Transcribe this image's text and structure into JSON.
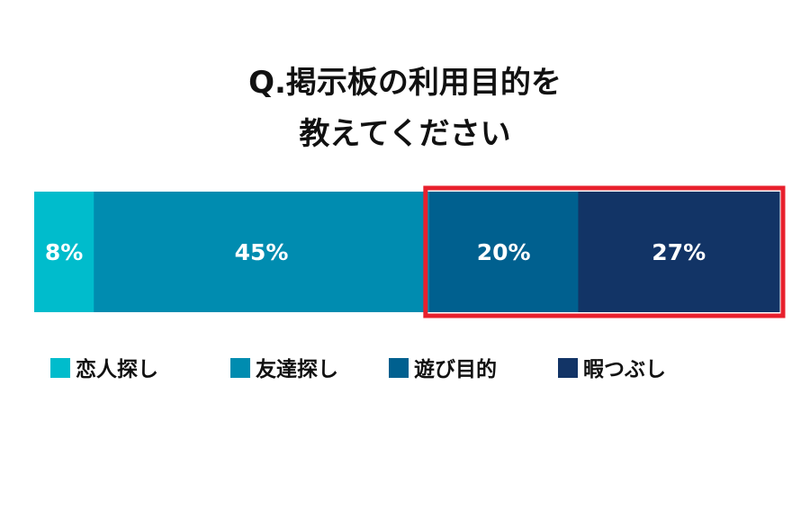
{
  "chart_data": {
    "type": "bar",
    "orientation": "horizontal",
    "stacked": true,
    "title": "Q.掲示板の利用目的を",
    "subtitle": "教えてください",
    "xlabel": "",
    "ylabel": "",
    "categories": [
      "恋人探し",
      "友達探し",
      "遊び目的",
      "暇つぶし"
    ],
    "values": [
      8,
      45,
      20,
      27
    ],
    "labels": [
      "8%",
      "45%",
      "20%",
      "27%"
    ],
    "colors": [
      "#00bccc",
      "#008cb0",
      "#00608f",
      "#123466"
    ],
    "highlight": {
      "categories": [
        "遊び目的",
        "暇つぶし"
      ],
      "color": "#e8202d"
    },
    "legend_position": "bottom",
    "grid": false
  }
}
